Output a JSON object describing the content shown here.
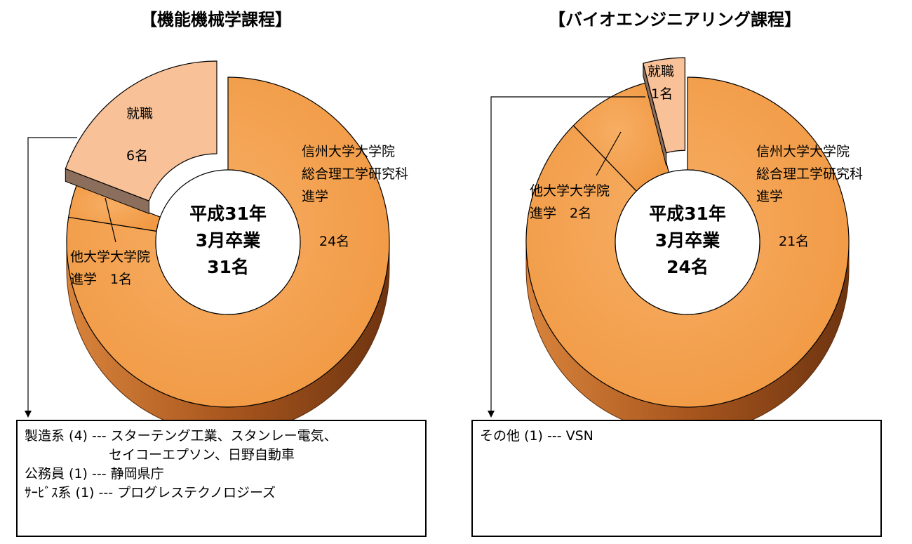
{
  "chart_data": [
    {
      "type": "pie",
      "variant": "3d-doughnut",
      "title": "【機能機械学課程】",
      "center_label": [
        "平成31年",
        "3月卒業",
        "31名"
      ],
      "slices": [
        {
          "label": [
            "信州大学大学院",
            "総合理工学研究科",
            "進学"
          ],
          "value_label": "24名",
          "value": 24,
          "color": "#F4A24E",
          "exploded": false
        },
        {
          "label": [
            "他大学大学院",
            "進学　1名"
          ],
          "value_label": "",
          "value": 1,
          "color": "#F4A24E",
          "exploded": false
        },
        {
          "label": [
            "就職"
          ],
          "value_label": "6名",
          "value": 6,
          "color": "#F8C197",
          "exploded": true
        }
      ],
      "note_lines": [
        "製造系 (4) --- スターテング工業、スタンレー電気、",
        "　　　　　　 セイコーエプソン、日野自動車",
        "公務員 (1) --- 静岡県庁",
        "ｻｰﾋﾞｽ系 (1) --- プログレステクノロジーズ"
      ]
    },
    {
      "type": "pie",
      "variant": "3d-doughnut",
      "title": "【バイオエンジニアリング課程】",
      "center_label": [
        "平成31年",
        "3月卒業",
        "24名"
      ],
      "slices": [
        {
          "label": [
            "信州大学大学院",
            "総合理工学研究科",
            "進学"
          ],
          "value_label": "21名",
          "value": 21,
          "color": "#F4A24E",
          "exploded": false
        },
        {
          "label": [
            "他大学大学院",
            "進学　2名"
          ],
          "value_label": "",
          "value": 2,
          "color": "#F4A24E",
          "exploded": false
        },
        {
          "label": [
            "就職"
          ],
          "value_label": "1名",
          "value": 1,
          "color": "#F8C197",
          "exploded": true
        }
      ],
      "note_lines": [
        "その他 (1) --- VSN"
      ]
    }
  ],
  "colors": {
    "slice_main": "#F4A24E",
    "slice_job": "#F8C197",
    "side_dark": "#7A3A10",
    "side_light": "#D9843C",
    "job_side": "#8B6F5C"
  }
}
